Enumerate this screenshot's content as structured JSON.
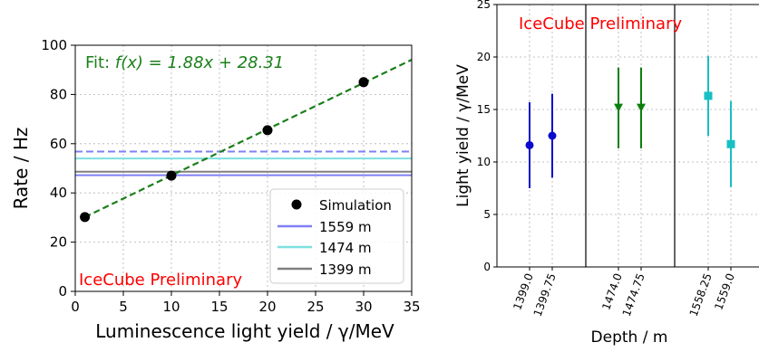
{
  "colors": {
    "fit": "#1a7f1a",
    "sim_points": "#000000",
    "line_1559": "#7f7ff5",
    "line_1474": "#7ee0e0",
    "line_1399": "#808080",
    "preliminary": "#ff0000",
    "blue_points": "#0a0acc",
    "green_points": "#0b7f0b",
    "cyan_points": "#18bfc4",
    "grid": "#b0b0b0"
  },
  "chart_data": [
    {
      "type": "scatter",
      "xlabel": "Luminescence light yield / γ/MeV",
      "ylabel": "Rate / Hz",
      "xlim": [
        0,
        35
      ],
      "ylim": [
        0,
        100
      ],
      "xticks": [
        "0",
        "5",
        "10",
        "15",
        "20",
        "25",
        "30",
        "35"
      ],
      "yticks": [
        "0",
        "20",
        "40",
        "60",
        "80",
        "100"
      ],
      "grid": true,
      "annotation": "IceCube Preliminary",
      "fit_prefix": "Fit: ",
      "fit_formula": "f(x) = 1.88x + 28.31",
      "fit": {
        "slope": 1.88,
        "intercept": 28.31
      },
      "simulation": {
        "name": "Simulation",
        "x": [
          1,
          10,
          20,
          30
        ],
        "y": [
          30.2,
          47.0,
          65.5,
          85.0
        ]
      },
      "hlines": [
        {
          "name": "1559 m",
          "y": 47.2,
          "dashed_y": 56.8,
          "color": "#7f7ff5"
        },
        {
          "name": "1474 m",
          "y": 54.0,
          "color": "#7ee0e0"
        },
        {
          "name": "1399 m",
          "y": 48.6,
          "color": "#808080"
        }
      ],
      "legend_location": "lower-right"
    },
    {
      "type": "scatter",
      "xlabel": "Depth / m",
      "ylabel": "Light yield / γ/MeV",
      "ylim": [
        0,
        25
      ],
      "yticks": [
        "0",
        "5",
        "10",
        "15",
        "20",
        "25"
      ],
      "grid": true,
      "annotation": "IceCube Preliminary",
      "categories": [
        "1399.0",
        "1399.75",
        "1474.0",
        "1474.75",
        "1558.25",
        "1559.0"
      ],
      "points": [
        {
          "depth": "1399.0",
          "value": 11.6,
          "low": 7.5,
          "high": 15.7,
          "marker": "circle",
          "color": "#0a0acc"
        },
        {
          "depth": "1399.75",
          "value": 12.5,
          "low": 8.5,
          "high": 16.5,
          "marker": "circle",
          "color": "#0a0acc"
        },
        {
          "depth": "1474.0",
          "value": 15.2,
          "low": 11.3,
          "high": 19.0,
          "marker": "triangle-down",
          "color": "#0b7f0b"
        },
        {
          "depth": "1474.75",
          "value": 15.2,
          "low": 11.3,
          "high": 19.0,
          "marker": "triangle-down",
          "color": "#0b7f0b"
        },
        {
          "depth": "1558.25",
          "value": 16.3,
          "low": 12.5,
          "high": 20.1,
          "marker": "square",
          "color": "#18bfc4"
        },
        {
          "depth": "1559.0",
          "value": 11.7,
          "low": 7.6,
          "high": 15.8,
          "marker": "square",
          "color": "#18bfc4"
        }
      ]
    }
  ]
}
